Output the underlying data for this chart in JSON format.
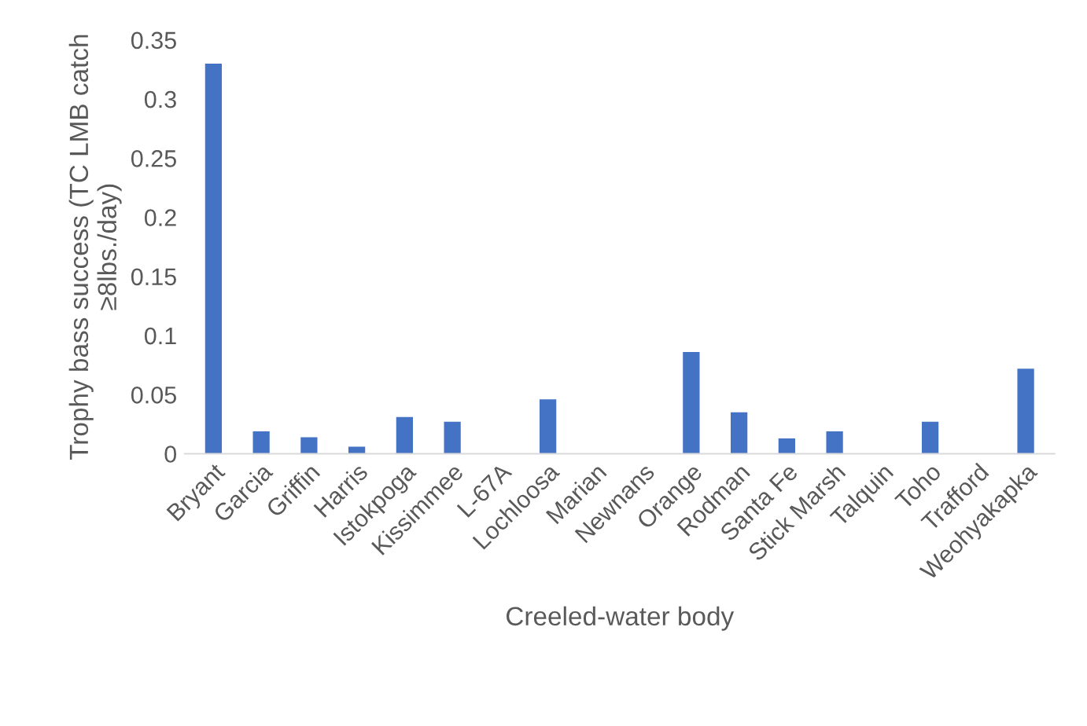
{
  "chart_data": {
    "type": "bar",
    "xlabel": "Creeled-water body",
    "ylabel": "Trophy bass success (TC LMB catch ≥8lbs./day)",
    "categories": [
      "Bryant",
      "Garcia",
      "Griffin",
      "Harris",
      "Istokpoga",
      "Kissimmee",
      "L-67A",
      "Lochloosa",
      "Marian",
      "Newnans",
      "Orange",
      "Rodman",
      "Santa Fe",
      "Stick Marsh",
      "Talquin",
      "Toho",
      "Trafford",
      "Weohyakapka"
    ],
    "values": [
      0.33,
      0.019,
      0.014,
      0.006,
      0.031,
      0.027,
      0,
      0.046,
      0,
      0,
      0.086,
      0.035,
      0.013,
      0.019,
      0,
      0.027,
      0,
      0.072
    ],
    "color": "#4472c4",
    "ylim": [
      0,
      0.35
    ],
    "yticks": [
      {
        "value": 0,
        "label": "0"
      },
      0.05,
      0.1,
      0.15,
      0.2,
      0.25,
      0.3,
      0.35
    ],
    "grid": false
  }
}
